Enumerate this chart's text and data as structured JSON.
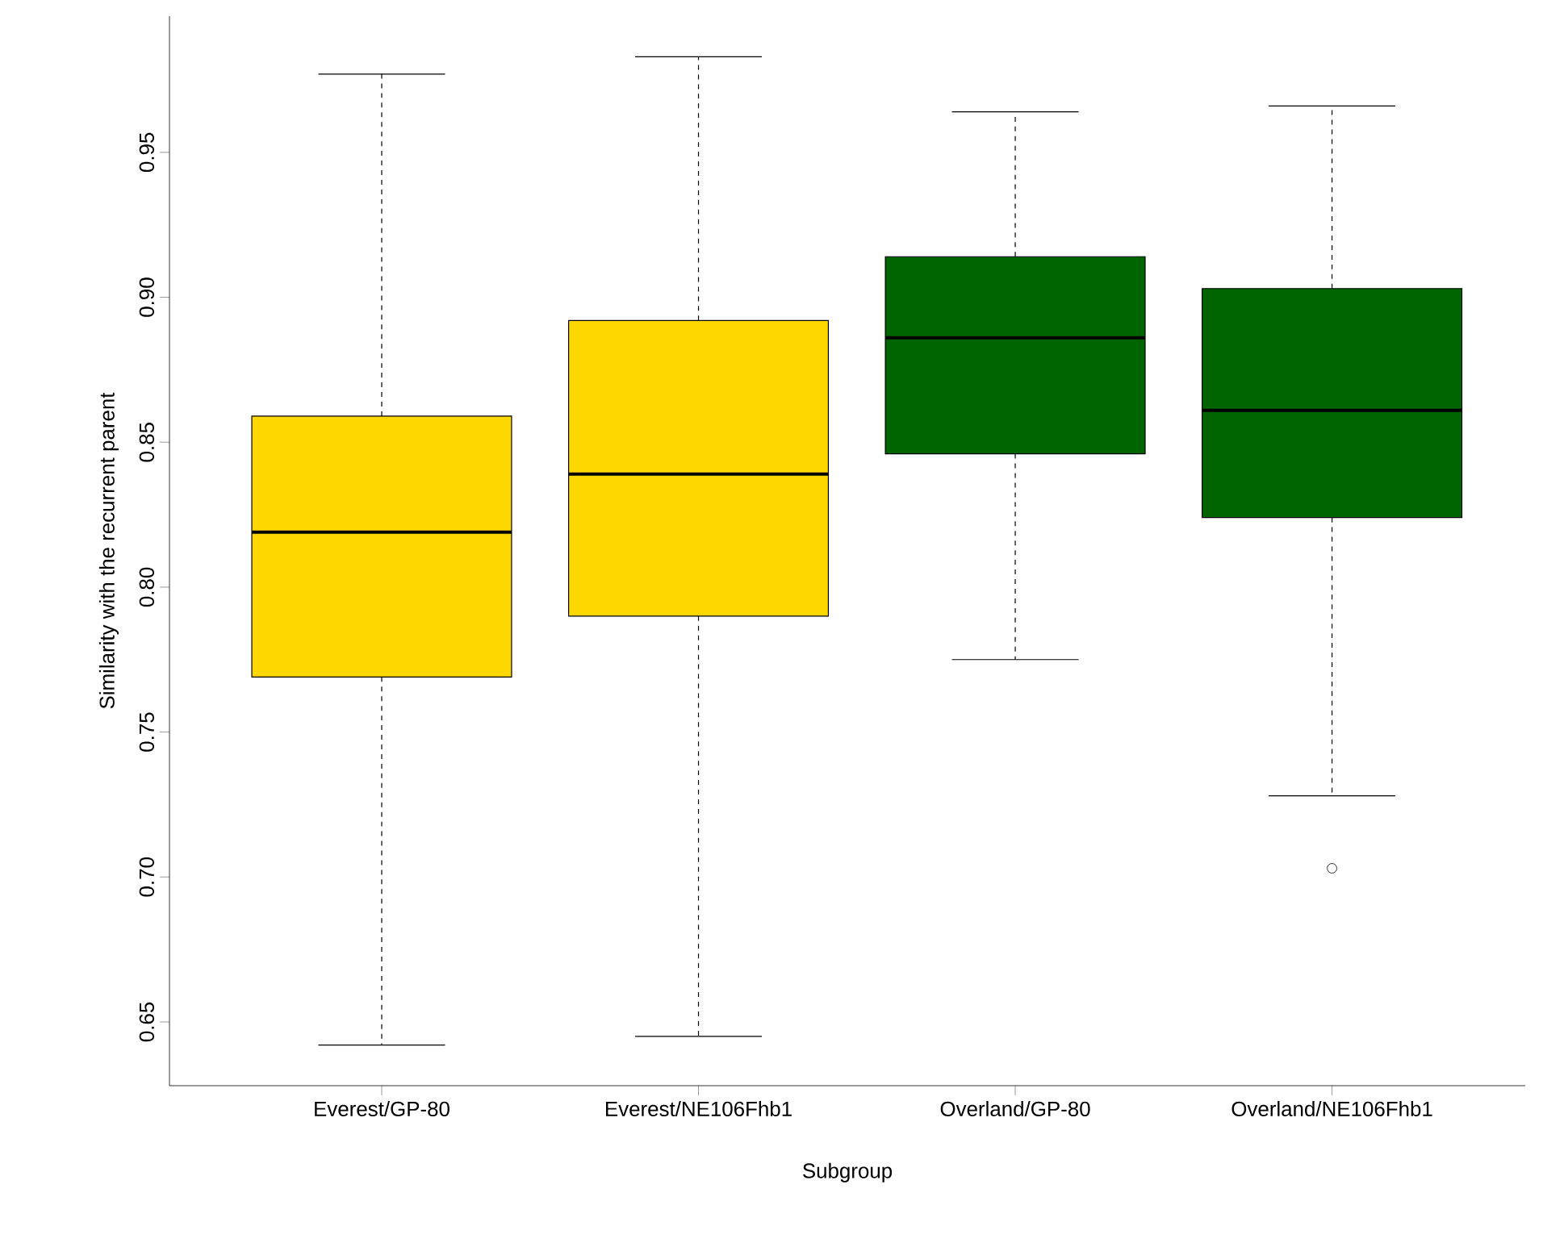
{
  "chart_data": {
    "type": "box",
    "xlabel": "Subgroup",
    "ylabel": "Similarity with the recurrent parent",
    "categories": [
      "Everest/GP-80",
      "Everest/NE106Fhb1",
      "Overland/GP-80",
      "Overland/NE106Fhb1"
    ],
    "colors": [
      "#ffd700",
      "#ffd700",
      "#006400",
      "#006400"
    ],
    "boxes": [
      {
        "low": 0.642,
        "q1": 0.769,
        "median": 0.819,
        "q3": 0.859,
        "high": 0.977
      },
      {
        "low": 0.645,
        "q1": 0.79,
        "median": 0.839,
        "q3": 0.892,
        "high": 0.983
      },
      {
        "low": 0.775,
        "q1": 0.846,
        "median": 0.886,
        "q3": 0.914,
        "high": 0.964
      },
      {
        "low": 0.728,
        "q1": 0.824,
        "median": 0.861,
        "q3": 0.903,
        "high": 0.966,
        "outliers": [
          0.703
        ]
      }
    ],
    "ylim": [
      0.628,
      0.997
    ],
    "yticks": [
      0.65,
      {
        "value": 0.7,
        "label": "0.70"
      },
      0.75,
      {
        "value": 0.8,
        "label": "0.80"
      },
      0.85,
      {
        "value": 0.9,
        "label": "0.90"
      },
      0.95
    ],
    "grid": false
  }
}
